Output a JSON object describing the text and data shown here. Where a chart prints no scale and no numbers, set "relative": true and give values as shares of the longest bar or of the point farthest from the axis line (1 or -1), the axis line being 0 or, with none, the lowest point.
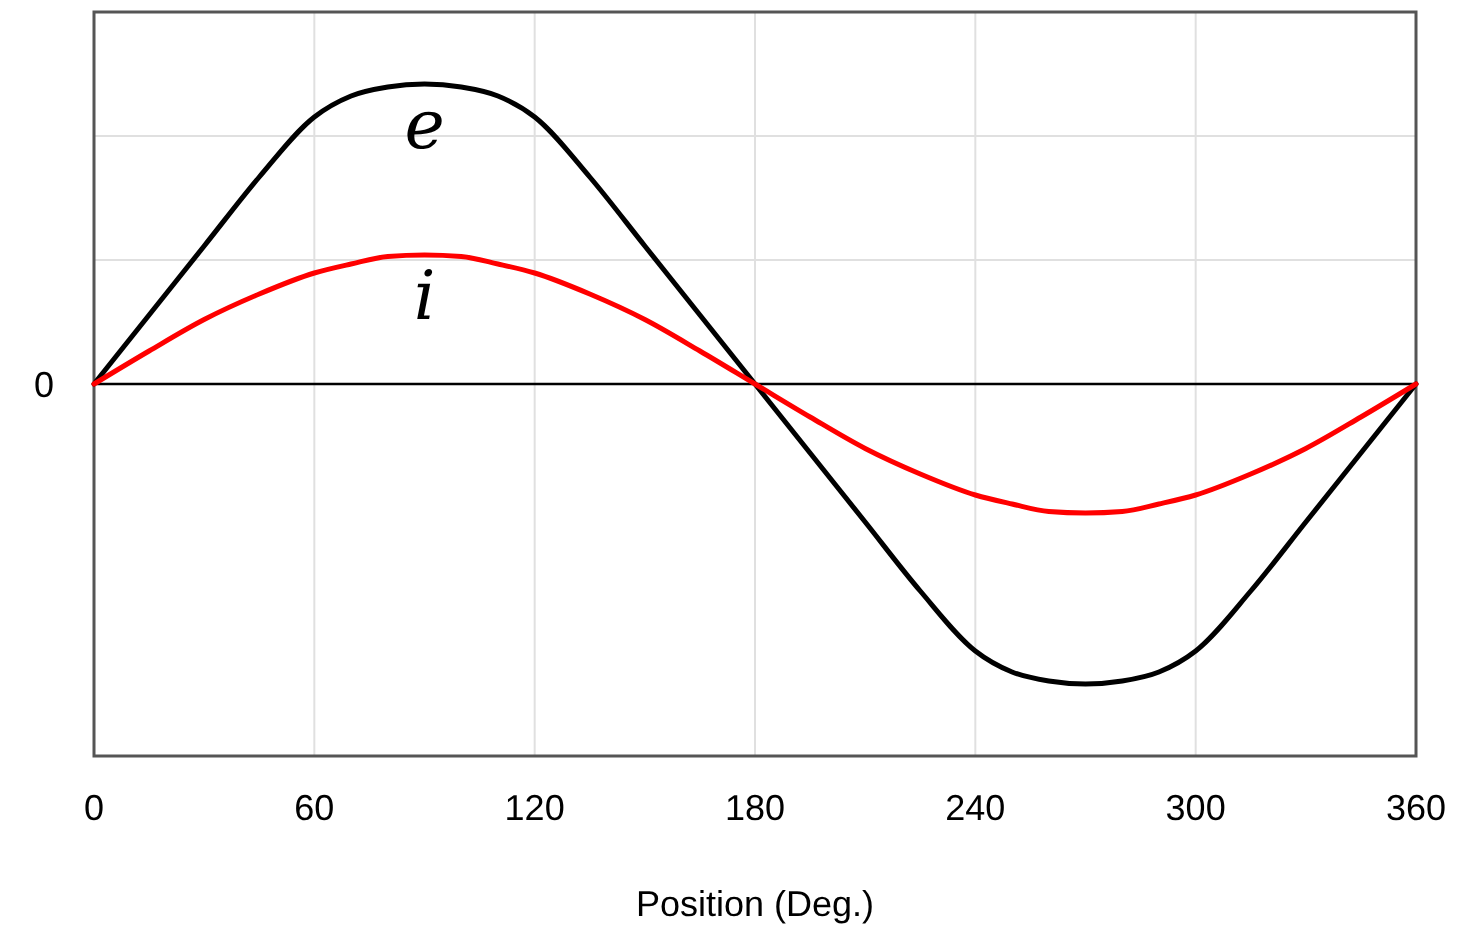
{
  "chart_data": {
    "type": "line",
    "relative": true,
    "xlabel": "Position (Deg.)",
    "xlim": [
      0,
      360
    ],
    "xticks": [
      0,
      60,
      120,
      180,
      240,
      300,
      360
    ],
    "x": [
      0,
      15,
      30,
      45,
      60,
      70,
      80,
      90,
      100,
      110,
      120,
      135,
      150,
      165,
      180,
      195,
      210,
      225,
      240,
      250,
      260,
      270,
      280,
      290,
      300,
      315,
      330,
      345,
      360
    ],
    "series": [
      {
        "name": "e",
        "color": "#000000",
        "values": [
          0,
          0.23,
          0.46,
          0.69,
          0.89,
          0.96,
          0.99,
          1,
          0.99,
          0.96,
          0.89,
          0.69,
          0.46,
          0.23,
          0,
          -0.23,
          -0.46,
          -0.69,
          -0.89,
          -0.96,
          -0.99,
          -1,
          -0.99,
          -0.96,
          -0.89,
          -0.69,
          -0.46,
          -0.23,
          0
        ]
      },
      {
        "name": "i",
        "color": "#ff0000",
        "values": [
          0,
          0.11,
          0.215,
          0.3,
          0.37,
          0.4,
          0.425,
          0.43,
          0.425,
          0.4,
          0.37,
          0.3,
          0.215,
          0.11,
          0,
          -0.11,
          -0.215,
          -0.3,
          -0.37,
          -0.4,
          -0.425,
          -0.43,
          -0.425,
          -0.4,
          -0.37,
          -0.3,
          -0.215,
          -0.11,
          0
        ]
      }
    ],
    "ref_lines": [
      {
        "axis": "y",
        "value": 0,
        "label": "0"
      }
    ],
    "grid": true,
    "marker": "none",
    "line_style": "solid"
  }
}
